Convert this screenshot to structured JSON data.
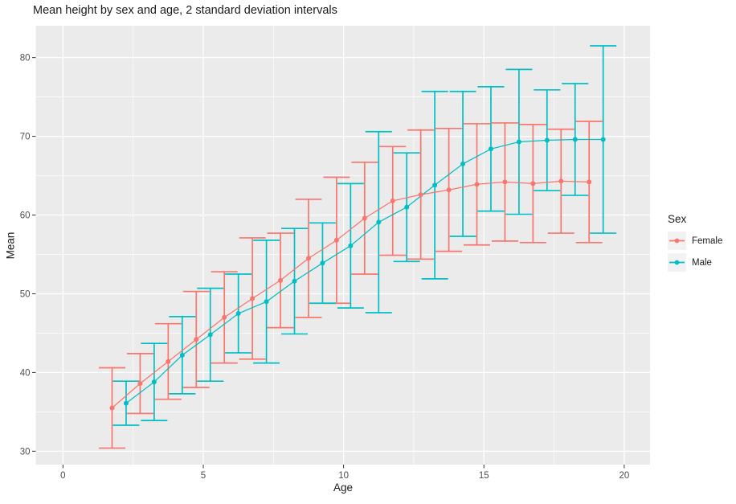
{
  "title": "Mean height by sex and age, 2 standard deviation intervals",
  "axes": {
    "x": {
      "label": "Age",
      "ticks": [
        0,
        5,
        10,
        15,
        20
      ],
      "range": [
        -0.97,
        20.92
      ],
      "minor_grid": true
    },
    "y": {
      "label": "Mean",
      "ticks": [
        30,
        40,
        50,
        60,
        70,
        80
      ],
      "range": [
        28.3,
        84.05
      ],
      "minor_grid": true
    }
  },
  "legend": {
    "title": "Sex",
    "position": "right",
    "items": [
      {
        "label": "Female",
        "color": "#F8766D"
      },
      {
        "label": "Male",
        "color": "#00BFC4"
      }
    ]
  },
  "chart_data": {
    "type": "line",
    "subtype": "means-with-2sd-errorbars",
    "dodge_width": 0.5,
    "grid": "on",
    "panel_background": "#EBEBEB",
    "gridline_color": "#FFFFFF",
    "xlabel": "Age",
    "ylabel": "Mean",
    "xlim": [
      -0.97,
      20.92
    ],
    "ylim": [
      28.3,
      84.05
    ],
    "series": [
      {
        "name": "Female",
        "color": "#F8766D",
        "points": [
          {
            "age": 2,
            "mean": 35.5,
            "lo": 30.4,
            "hi": 40.6
          },
          {
            "age": 3,
            "mean": 38.6,
            "lo": 34.8,
            "hi": 42.4
          },
          {
            "age": 4,
            "mean": 41.4,
            "lo": 36.6,
            "hi": 46.2
          },
          {
            "age": 5,
            "mean": 44.2,
            "lo": 38.1,
            "hi": 50.3
          },
          {
            "age": 6,
            "mean": 47.0,
            "lo": 41.2,
            "hi": 52.8
          },
          {
            "age": 7,
            "mean": 49.4,
            "lo": 41.7,
            "hi": 57.1
          },
          {
            "age": 8,
            "mean": 51.7,
            "lo": 45.7,
            "hi": 57.7
          },
          {
            "age": 9,
            "mean": 54.5,
            "lo": 47.0,
            "hi": 62.0
          },
          {
            "age": 10,
            "mean": 56.8,
            "lo": 48.8,
            "hi": 64.8
          },
          {
            "age": 11,
            "mean": 59.6,
            "lo": 52.5,
            "hi": 66.7
          },
          {
            "age": 12,
            "mean": 61.8,
            "lo": 54.9,
            "hi": 68.7
          },
          {
            "age": 13,
            "mean": 62.6,
            "lo": 54.4,
            "hi": 70.8
          },
          {
            "age": 14,
            "mean": 63.2,
            "lo": 55.4,
            "hi": 71.0
          },
          {
            "age": 15,
            "mean": 63.9,
            "lo": 56.2,
            "hi": 71.6
          },
          {
            "age": 16,
            "mean": 64.2,
            "lo": 56.7,
            "hi": 71.7
          },
          {
            "age": 17,
            "mean": 64.0,
            "lo": 56.5,
            "hi": 71.5
          },
          {
            "age": 18,
            "mean": 64.3,
            "lo": 57.7,
            "hi": 70.9
          },
          {
            "age": 19,
            "mean": 64.2,
            "lo": 56.5,
            "hi": 71.9
          }
        ]
      },
      {
        "name": "Male",
        "color": "#00BFC4",
        "points": [
          {
            "age": 2,
            "mean": 36.1,
            "lo": 33.3,
            "hi": 38.9
          },
          {
            "age": 3,
            "mean": 38.8,
            "lo": 33.9,
            "hi": 43.7
          },
          {
            "age": 4,
            "mean": 42.2,
            "lo": 37.3,
            "hi": 47.1
          },
          {
            "age": 5,
            "mean": 44.8,
            "lo": 38.9,
            "hi": 50.7
          },
          {
            "age": 6,
            "mean": 47.5,
            "lo": 42.5,
            "hi": 52.5
          },
          {
            "age": 7,
            "mean": 49.0,
            "lo": 41.2,
            "hi": 56.8
          },
          {
            "age": 8,
            "mean": 51.6,
            "lo": 44.9,
            "hi": 58.3
          },
          {
            "age": 9,
            "mean": 53.9,
            "lo": 48.8,
            "hi": 59.0
          },
          {
            "age": 10,
            "mean": 56.1,
            "lo": 48.2,
            "hi": 64.0
          },
          {
            "age": 11,
            "mean": 59.1,
            "lo": 47.6,
            "hi": 70.6
          },
          {
            "age": 12,
            "mean": 61.0,
            "lo": 54.1,
            "hi": 67.9
          },
          {
            "age": 13,
            "mean": 63.8,
            "lo": 51.9,
            "hi": 75.7
          },
          {
            "age": 14,
            "mean": 66.5,
            "lo": 57.3,
            "hi": 75.7
          },
          {
            "age": 15,
            "mean": 68.4,
            "lo": 60.5,
            "hi": 76.3
          },
          {
            "age": 16,
            "mean": 69.3,
            "lo": 60.1,
            "hi": 78.5
          },
          {
            "age": 17,
            "mean": 69.5,
            "lo": 63.1,
            "hi": 75.9
          },
          {
            "age": 18,
            "mean": 69.6,
            "lo": 62.5,
            "hi": 76.7
          },
          {
            "age": 19,
            "mean": 69.6,
            "lo": 57.7,
            "hi": 81.5
          }
        ]
      }
    ]
  }
}
